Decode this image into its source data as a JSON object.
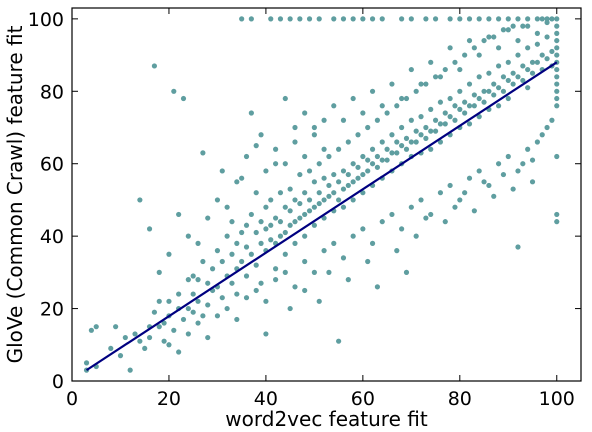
{
  "chart_data": {
    "type": "scatter",
    "title": "",
    "xlabel": "word2vec feature fit",
    "ylabel": "GloVe (Common Crawl) feature fit",
    "xlim": [
      0,
      105
    ],
    "ylim": [
      0,
      103
    ],
    "xticks": [
      0,
      20,
      40,
      60,
      80,
      100
    ],
    "yticks": [
      0,
      20,
      40,
      60,
      80,
      100
    ],
    "grid": false,
    "legend": "none",
    "point_color": "#5f9ea0",
    "line_color": "#000080",
    "fit_line": {
      "x": [
        3,
        100
      ],
      "y": [
        3,
        88
      ]
    },
    "points": [
      [
        3,
        5
      ],
      [
        3,
        3
      ],
      [
        4,
        14
      ],
      [
        5,
        15
      ],
      [
        5,
        4
      ],
      [
        8,
        9
      ],
      [
        9,
        15
      ],
      [
        10,
        7
      ],
      [
        11,
        12
      ],
      [
        12,
        3
      ],
      [
        13,
        13
      ],
      [
        14,
        11
      ],
      [
        15,
        9
      ],
      [
        16,
        15
      ],
      [
        16,
        12
      ],
      [
        17,
        19
      ],
      [
        17,
        87
      ],
      [
        18,
        15
      ],
      [
        18,
        22
      ],
      [
        19,
        16
      ],
      [
        19,
        11
      ],
      [
        20,
        18
      ],
      [
        20,
        22
      ],
      [
        21,
        14
      ],
      [
        21,
        80
      ],
      [
        22,
        20
      ],
      [
        22,
        24
      ],
      [
        23,
        17
      ],
      [
        23,
        78
      ],
      [
        24,
        28
      ],
      [
        24,
        20
      ],
      [
        25,
        19
      ],
      [
        25,
        24
      ],
      [
        25,
        29
      ],
      [
        26,
        22
      ],
      [
        26,
        28
      ],
      [
        27,
        33
      ],
      [
        27,
        18
      ],
      [
        27,
        63
      ],
      [
        28,
        27
      ],
      [
        28,
        21
      ],
      [
        29,
        31
      ],
      [
        29,
        25
      ],
      [
        30,
        26
      ],
      [
        30,
        36
      ],
      [
        31,
        33
      ],
      [
        31,
        23
      ],
      [
        32,
        29
      ],
      [
        32,
        40
      ],
      [
        33,
        27
      ],
      [
        33,
        35
      ],
      [
        33,
        44
      ],
      [
        34,
        31
      ],
      [
        34,
        38
      ],
      [
        34,
        24
      ],
      [
        35,
        33
      ],
      [
        35,
        41
      ],
      [
        35,
        100
      ],
      [
        35,
        56
      ],
      [
        36,
        37
      ],
      [
        36,
        29
      ],
      [
        36,
        43
      ],
      [
        37,
        35
      ],
      [
        37,
        46
      ],
      [
        37,
        100
      ],
      [
        37,
        74
      ],
      [
        38,
        41
      ],
      [
        38,
        32
      ],
      [
        38,
        52
      ],
      [
        39,
        38
      ],
      [
        39,
        44
      ],
      [
        39,
        27
      ],
      [
        39,
        68
      ],
      [
        40,
        42
      ],
      [
        40,
        36
      ],
      [
        40,
        48
      ],
      [
        40,
        13
      ],
      [
        41,
        43
      ],
      [
        41,
        39
      ],
      [
        41,
        50
      ],
      [
        41,
        100
      ],
      [
        42,
        38
      ],
      [
        42,
        45
      ],
      [
        42,
        31
      ],
      [
        42,
        60
      ],
      [
        43,
        44
      ],
      [
        43,
        40
      ],
      [
        43,
        52
      ],
      [
        43,
        100
      ],
      [
        44,
        41
      ],
      [
        44,
        48
      ],
      [
        44,
        35
      ],
      [
        44,
        78
      ],
      [
        45,
        47
      ],
      [
        45,
        43
      ],
      [
        45,
        53
      ],
      [
        45,
        100
      ],
      [
        46,
        44
      ],
      [
        46,
        50
      ],
      [
        46,
        38
      ],
      [
        46,
        70
      ],
      [
        47,
        49
      ],
      [
        47,
        45
      ],
      [
        47,
        57
      ],
      [
        47,
        100
      ],
      [
        48,
        46
      ],
      [
        48,
        52
      ],
      [
        48,
        40
      ],
      [
        48,
        74
      ],
      [
        49,
        50
      ],
      [
        49,
        47
      ],
      [
        49,
        58
      ],
      [
        49,
        100
      ],
      [
        50,
        48
      ],
      [
        50,
        55
      ],
      [
        50,
        43
      ],
      [
        50,
        68
      ],
      [
        51,
        52
      ],
      [
        51,
        49
      ],
      [
        51,
        60
      ],
      [
        51,
        100
      ],
      [
        52,
        50
      ],
      [
        52,
        56
      ],
      [
        52,
        45
      ],
      [
        52,
        72
      ],
      [
        53,
        54
      ],
      [
        53,
        51
      ],
      [
        53,
        62
      ],
      [
        54,
        52
      ],
      [
        54,
        57
      ],
      [
        54,
        47
      ],
      [
        54,
        100
      ],
      [
        55,
        55
      ],
      [
        55,
        50
      ],
      [
        55,
        64
      ],
      [
        55,
        11
      ],
      [
        56,
        53
      ],
      [
        56,
        58
      ],
      [
        56,
        48
      ],
      [
        56,
        100
      ],
      [
        57,
        57
      ],
      [
        57,
        54
      ],
      [
        57,
        66
      ],
      [
        58,
        55
      ],
      [
        58,
        60
      ],
      [
        58,
        50
      ],
      [
        58,
        100
      ],
      [
        59,
        59
      ],
      [
        59,
        56
      ],
      [
        59,
        68
      ],
      [
        60,
        57
      ],
      [
        60,
        62
      ],
      [
        60,
        52
      ],
      [
        60,
        100
      ],
      [
        61,
        61
      ],
      [
        61,
        58
      ],
      [
        61,
        70
      ],
      [
        62,
        60
      ],
      [
        62,
        64
      ],
      [
        62,
        54
      ],
      [
        62,
        100
      ],
      [
        63,
        62
      ],
      [
        63,
        59
      ],
      [
        63,
        72
      ],
      [
        64,
        61
      ],
      [
        64,
        66
      ],
      [
        64,
        56
      ],
      [
        64,
        100
      ],
      [
        65,
        64
      ],
      [
        65,
        61
      ],
      [
        65,
        74
      ],
      [
        66,
        63
      ],
      [
        66,
        68
      ],
      [
        66,
        58
      ],
      [
        67,
        66
      ],
      [
        67,
        63
      ],
      [
        67,
        76
      ],
      [
        68,
        65
      ],
      [
        68,
        70
      ],
      [
        68,
        60
      ],
      [
        68,
        100
      ],
      [
        69,
        67
      ],
      [
        69,
        64
      ],
      [
        69,
        78
      ],
      [
        70,
        66
      ],
      [
        70,
        72
      ],
      [
        70,
        62
      ],
      [
        70,
        100
      ],
      [
        71,
        69
      ],
      [
        71,
        66
      ],
      [
        71,
        80
      ],
      [
        72,
        68
      ],
      [
        72,
        73
      ],
      [
        72,
        63
      ],
      [
        73,
        70
      ],
      [
        73,
        67
      ],
      [
        73,
        82
      ],
      [
        73,
        100
      ],
      [
        74,
        69
      ],
      [
        74,
        75
      ],
      [
        74,
        64
      ],
      [
        75,
        72
      ],
      [
        75,
        69
      ],
      [
        75,
        84
      ],
      [
        75,
        100
      ],
      [
        76,
        71
      ],
      [
        76,
        77
      ],
      [
        76,
        66
      ],
      [
        77,
        74
      ],
      [
        77,
        71
      ],
      [
        77,
        86
      ],
      [
        78,
        73
      ],
      [
        78,
        78
      ],
      [
        78,
        68
      ],
      [
        78,
        100
      ],
      [
        79,
        76
      ],
      [
        79,
        72
      ],
      [
        79,
        88
      ],
      [
        80,
        75
      ],
      [
        80,
        80
      ],
      [
        80,
        70
      ],
      [
        80,
        100
      ],
      [
        81,
        77
      ],
      [
        81,
        74
      ],
      [
        81,
        90
      ],
      [
        82,
        76
      ],
      [
        82,
        82
      ],
      [
        82,
        71
      ],
      [
        82,
        100
      ],
      [
        83,
        79
      ],
      [
        83,
        76
      ],
      [
        83,
        92
      ],
      [
        84,
        78
      ],
      [
        84,
        84
      ],
      [
        84,
        73
      ],
      [
        84,
        100
      ],
      [
        85,
        80
      ],
      [
        85,
        77
      ],
      [
        85,
        94
      ],
      [
        86,
        80
      ],
      [
        86,
        85
      ],
      [
        86,
        75
      ],
      [
        86,
        100
      ],
      [
        87,
        82
      ],
      [
        87,
        79
      ],
      [
        87,
        95
      ],
      [
        88,
        81
      ],
      [
        88,
        87
      ],
      [
        88,
        76
      ],
      [
        88,
        100
      ],
      [
        89,
        84
      ],
      [
        89,
        80
      ],
      [
        89,
        97
      ],
      [
        90,
        83
      ],
      [
        90,
        88
      ],
      [
        90,
        78
      ],
      [
        90,
        100
      ],
      [
        91,
        85
      ],
      [
        91,
        82
      ],
      [
        91,
        98
      ],
      [
        92,
        84
      ],
      [
        92,
        90
      ],
      [
        92,
        37
      ],
      [
        92,
        100
      ],
      [
        93,
        87
      ],
      [
        93,
        83
      ],
      [
        93,
        98
      ],
      [
        94,
        86
      ],
      [
        94,
        92
      ],
      [
        94,
        81
      ],
      [
        94,
        100
      ],
      [
        95,
        88
      ],
      [
        95,
        85
      ],
      [
        95,
        61
      ],
      [
        96,
        88
      ],
      [
        96,
        93
      ],
      [
        96,
        100
      ],
      [
        97,
        90
      ],
      [
        97,
        86
      ],
      [
        97,
        100
      ],
      [
        98,
        89
      ],
      [
        98,
        95
      ],
      [
        98,
        100
      ],
      [
        99,
        91
      ],
      [
        99,
        87
      ],
      [
        99,
        100
      ],
      [
        100,
        100
      ],
      [
        100,
        98
      ],
      [
        100,
        96
      ],
      [
        100,
        94
      ],
      [
        100,
        92
      ],
      [
        100,
        90
      ],
      [
        100,
        88
      ],
      [
        100,
        86
      ],
      [
        100,
        84
      ],
      [
        100,
        82
      ],
      [
        100,
        80
      ],
      [
        100,
        78
      ],
      [
        100,
        76
      ],
      [
        100,
        62
      ],
      [
        100,
        46
      ],
      [
        100,
        44
      ],
      [
        14,
        50
      ],
      [
        16,
        42
      ],
      [
        18,
        30
      ],
      [
        20,
        35
      ],
      [
        22,
        46
      ],
      [
        24,
        40
      ],
      [
        26,
        38
      ],
      [
        28,
        45
      ],
      [
        30,
        50
      ],
      [
        31,
        58
      ],
      [
        32,
        48
      ],
      [
        34,
        55
      ],
      [
        36,
        62
      ],
      [
        38,
        65
      ],
      [
        40,
        58
      ],
      [
        42,
        64
      ],
      [
        44,
        60
      ],
      [
        46,
        66
      ],
      [
        48,
        62
      ],
      [
        50,
        70
      ],
      [
        52,
        64
      ],
      [
        54,
        76
      ],
      [
        56,
        72
      ],
      [
        58,
        78
      ],
      [
        60,
        74
      ],
      [
        62,
        80
      ],
      [
        64,
        76
      ],
      [
        66,
        82
      ],
      [
        68,
        78
      ],
      [
        70,
        86
      ],
      [
        72,
        82
      ],
      [
        74,
        88
      ],
      [
        76,
        84
      ],
      [
        78,
        92
      ],
      [
        80,
        86
      ],
      [
        82,
        94
      ],
      [
        84,
        90
      ],
      [
        86,
        95
      ],
      [
        88,
        92
      ],
      [
        90,
        97
      ],
      [
        92,
        94
      ],
      [
        94,
        98
      ],
      [
        96,
        96
      ],
      [
        98,
        99
      ],
      [
        20,
        10
      ],
      [
        22,
        8
      ],
      [
        24,
        13
      ],
      [
        26,
        16
      ],
      [
        28,
        12
      ],
      [
        30,
        18
      ],
      [
        32,
        20
      ],
      [
        34,
        17
      ],
      [
        36,
        23
      ],
      [
        38,
        25
      ],
      [
        40,
        22
      ],
      [
        42,
        28
      ],
      [
        44,
        30
      ],
      [
        46,
        26
      ],
      [
        48,
        33
      ],
      [
        50,
        30
      ],
      [
        52,
        36
      ],
      [
        54,
        38
      ],
      [
        56,
        34
      ],
      [
        58,
        40
      ],
      [
        60,
        42
      ],
      [
        62,
        38
      ],
      [
        64,
        44
      ],
      [
        66,
        46
      ],
      [
        68,
        42
      ],
      [
        70,
        48
      ],
      [
        72,
        50
      ],
      [
        74,
        46
      ],
      [
        76,
        52
      ],
      [
        78,
        54
      ],
      [
        80,
        50
      ],
      [
        82,
        56
      ],
      [
        84,
        58
      ],
      [
        86,
        54
      ],
      [
        88,
        60
      ],
      [
        90,
        62
      ],
      [
        92,
        58
      ],
      [
        94,
        64
      ],
      [
        96,
        66
      ],
      [
        98,
        70
      ],
      [
        45,
        20
      ],
      [
        48,
        25
      ],
      [
        51,
        22
      ],
      [
        53,
        30
      ],
      [
        57,
        28
      ],
      [
        61,
        33
      ],
      [
        63,
        26
      ],
      [
        67,
        36
      ],
      [
        69,
        30
      ],
      [
        71,
        40
      ],
      [
        73,
        45
      ],
      [
        77,
        44
      ],
      [
        79,
        48
      ],
      [
        81,
        52
      ],
      [
        83,
        47
      ],
      [
        85,
        55
      ],
      [
        87,
        51
      ],
      [
        89,
        57
      ],
      [
        91,
        53
      ],
      [
        93,
        60
      ],
      [
        95,
        55
      ],
      [
        97,
        68
      ],
      [
        99,
        72
      ]
    ]
  }
}
